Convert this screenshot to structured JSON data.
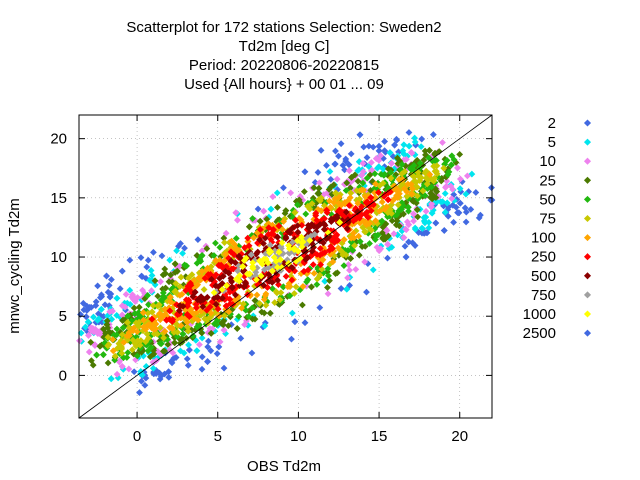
{
  "chart_data": {
    "type": "scatter",
    "title_lines": [
      "Scatterplot for  172 stations Selection: Sweden2",
      "Td2m [deg C]",
      "Period: 20220806-20220815",
      "Used {All hours} + 00 01 ... 09"
    ],
    "xlabel": "OBS Td2m",
    "ylabel": "mnwc_cycling Td2m",
    "xlim": [
      -3.6,
      22
    ],
    "ylim": [
      -3.6,
      22
    ],
    "x_ticks": [
      0,
      5,
      10,
      15,
      20
    ],
    "y_ticks": [
      0,
      5,
      10,
      15,
      20
    ],
    "grid": true,
    "diagonal": "y = x",
    "legend_position": "right",
    "legend": [
      {
        "label": "2",
        "color": "#4169e1"
      },
      {
        "label": "5",
        "color": "#00e5ee"
      },
      {
        "label": "10",
        "color": "#ee82ee"
      },
      {
        "label": "25",
        "color": "#4b7a00"
      },
      {
        "label": "50",
        "color": "#22b80f"
      },
      {
        "label": "75",
        "color": "#c8c800"
      },
      {
        "label": "100",
        "color": "#ffa500"
      },
      {
        "label": "250",
        "color": "#ff0000"
      },
      {
        "label": "500",
        "color": "#8b0000"
      },
      {
        "label": "750",
        "color": "#a0a0a0"
      },
      {
        "label": "1000",
        "color": "#ffff00"
      },
      {
        "label": "2500",
        "color": "#4169e1"
      }
    ],
    "density_model": {
      "center_start": [
        -2,
        2
      ],
      "center_end": [
        19,
        17.8
      ],
      "note": "point density count classes shown by legend colors"
    }
  }
}
